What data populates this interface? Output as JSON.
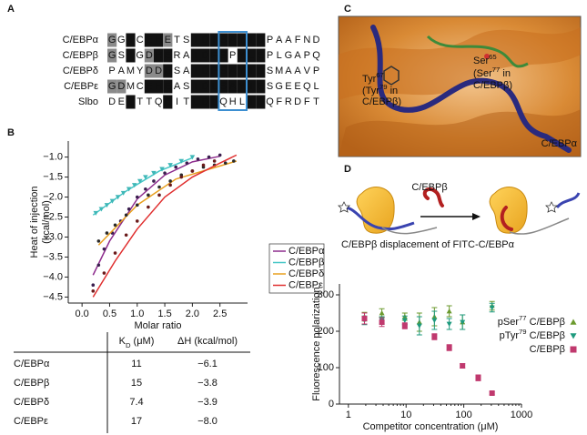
{
  "panel_labels": [
    "A",
    "B",
    "C",
    "D"
  ],
  "alignment": {
    "box_color": "#3d8fd1",
    "rows": [
      {
        "name": "C/EBPα",
        "residues": [
          "G",
          "G",
          "I",
          "C",
          "E",
          "H",
          "E",
          "T",
          "S",
          "I",
          "D",
          "I",
          "S",
          "A",
          "Y",
          "I",
          "D",
          "P",
          "A",
          "A",
          "F",
          "N",
          "D"
        ]
      },
      {
        "name": "C/EBPβ",
        "residues": [
          "G",
          "S",
          "I",
          "G",
          "D",
          "H",
          "E",
          "R",
          "A",
          "I",
          "D",
          "F",
          "S",
          "P",
          "Y",
          "L",
          "E",
          "P",
          "L",
          "G",
          "A",
          "P",
          "Q"
        ]
      },
      {
        "name": "C/EBPδ",
        "residues": [
          "P",
          "A",
          "M",
          "Y",
          "D",
          "D",
          "E",
          "S",
          "A",
          "I",
          "D",
          "F",
          "S",
          "A",
          "Y",
          "I",
          "D",
          "S",
          "M",
          "A",
          "A",
          "V",
          "P"
        ]
      },
      {
        "name": "C/EBPε",
        "residues": [
          "G",
          "D",
          "M",
          "C",
          "E",
          "H",
          "E",
          "A",
          "S",
          "I",
          "D",
          "L",
          "S",
          "A",
          "Y",
          "I",
          "E",
          "S",
          "G",
          "E",
          "E",
          "Q",
          "L"
        ]
      },
      {
        "name": "Slbo",
        "residues": [
          "D",
          "E",
          "L",
          "T",
          "T",
          "Q",
          "E",
          "I",
          "T",
          "L",
          "D",
          "L",
          "Q",
          "H",
          "L",
          "I",
          "D",
          "Q",
          "F",
          "R",
          "D",
          "F",
          "T"
        ]
      }
    ]
  },
  "chart_data": [
    {
      "type": "scatter",
      "xlabel": "Molar ratio",
      "ylabel": [
        "Heat of injection",
        "(kcal/mol)"
      ],
      "xlim": [
        -0.25,
        3.0
      ],
      "ylim": [
        -4.65,
        -0.6
      ],
      "xticks": [
        {
          "value": 0,
          "label": "0.0"
        },
        0.5,
        {
          "value": 1,
          "label": "1.0"
        },
        1.5,
        {
          "value": 2,
          "label": "2.0"
        },
        2.5
      ],
      "yticks": [
        {
          "value": -4.5,
          "label": "−4.5"
        },
        {
          "value": -4,
          "label": "−4.0"
        },
        {
          "value": -3.5,
          "label": "−3.5"
        },
        {
          "value": -3,
          "label": "−3.0"
        },
        {
          "value": -2.5,
          "label": "−2.5"
        },
        {
          "value": -2,
          "label": "−2.0"
        },
        {
          "value": -1.5,
          "label": "−1.5"
        },
        {
          "value": -1,
          "label": "−1.0"
        }
      ],
      "series": [
        {
          "name": "C/EBPα",
          "color": "#8e2d8e",
          "marker": "circle",
          "marker_color": "#3b1f4f",
          "x": [
            0.2,
            0.3,
            0.4,
            0.55,
            0.7,
            0.85,
            1.0,
            1.15,
            1.3,
            1.5,
            1.7,
            1.9,
            2.1,
            2.3,
            2.5
          ],
          "values": [
            -4.2,
            -3.7,
            -3.3,
            -2.9,
            -2.6,
            -2.3,
            -2.0,
            -1.8,
            -1.6,
            -1.4,
            -1.25,
            -1.15,
            -1.05,
            -1.0,
            -0.95
          ],
          "fit_x": [
            0.2,
            0.5,
            1.0,
            1.5,
            2.0,
            2.5
          ],
          "fit_values": [
            -3.95,
            -3.1,
            -2.05,
            -1.45,
            -1.12,
            -0.98
          ]
        },
        {
          "name": "C/EBPβ",
          "color": "#45c6c6",
          "marker": "triangle-down",
          "marker_color": "#3fb7b7",
          "x": [
            0.25,
            0.35,
            0.45,
            0.55,
            0.65,
            0.75,
            0.85,
            0.95,
            1.05,
            1.15,
            1.3,
            1.45,
            1.6,
            1.8,
            2.0
          ],
          "values": [
            -2.4,
            -2.3,
            -2.2,
            -2.1,
            -2.0,
            -1.9,
            -1.8,
            -1.7,
            -1.6,
            -1.5,
            -1.4,
            -1.3,
            -1.2,
            -1.1,
            -1.0
          ],
          "fit_x": [
            0.2,
            0.8,
            1.4,
            2.0
          ],
          "fit_values": [
            -2.45,
            -1.85,
            -1.35,
            -1.02
          ]
        },
        {
          "name": "C/EBPδ",
          "color": "#e8a020",
          "marker": "circle",
          "marker_color": "#2a2a2a",
          "x": [
            0.3,
            0.45,
            0.6,
            0.8,
            1.0,
            1.2,
            1.4,
            1.6,
            1.8,
            2.0,
            2.2,
            2.4,
            2.6,
            2.75
          ],
          "values": [
            -3.1,
            -2.9,
            -2.7,
            -2.45,
            -2.2,
            -1.95,
            -1.75,
            -1.6,
            -1.45,
            -1.35,
            -1.25,
            -1.2,
            -1.15,
            -1.1
          ],
          "fit_x": [
            0.3,
            1.0,
            1.7,
            2.8
          ],
          "fit_values": [
            -3.2,
            -2.2,
            -1.55,
            -1.1
          ]
        },
        {
          "name": "C/EBPε",
          "color": "#e03030",
          "marker": "circle",
          "marker_color": "#6a1a1a",
          "x": [
            0.2,
            0.4,
            0.6,
            0.8,
            1.0,
            1.2,
            1.4,
            1.6,
            1.8,
            2.0,
            2.2,
            2.4
          ],
          "values": [
            -4.35,
            -3.9,
            -3.4,
            -2.95,
            -2.6,
            -2.25,
            -1.95,
            -1.7,
            -1.5,
            -1.35,
            -1.2,
            -1.1
          ],
          "fit_x": [
            0.2,
            0.6,
            1.0,
            1.5,
            2.0,
            2.5,
            2.8
          ],
          "fit_values": [
            -4.5,
            -3.6,
            -2.8,
            -2.0,
            -1.5,
            -1.15,
            -0.95
          ]
        }
      ]
    },
    {
      "type": "scatter",
      "log_x": true,
      "title": "C/EBPβ displacement of FITC-C/EBPα",
      "xlabel": "Competitor concentration (μM)",
      "ylabel": "Fluorescence polarization",
      "xlim": [
        0.7,
        1000
      ],
      "ylim": [
        0,
        330
      ],
      "xticks": [
        1,
        10,
        100,
        1000
      ],
      "yticks": [
        0,
        100,
        200,
        300
      ],
      "x": [
        1.9,
        3.8,
        9.5,
        17,
        31,
        56,
        95,
        178,
        309
      ],
      "series": [
        {
          "name": [
            "pSer",
            "77",
            " C/EBPβ"
          ],
          "color": "#6b9a2e",
          "marker": "triangle-up",
          "values": [
            240,
            250,
            240,
            225,
            240,
            255,
            225,
            null,
            270
          ],
          "errors": [
            12,
            12,
            10,
            25,
            25,
            15,
            20,
            null,
            12
          ]
        },
        {
          "name": [
            "pTyr",
            "79",
            " C/EBPβ"
          ],
          "color": "#1e9a7e",
          "marker": "triangle-down",
          "values": [
            230,
            230,
            230,
            215,
            230,
            220,
            225,
            null,
            265
          ],
          "errors": [
            12,
            10,
            12,
            25,
            25,
            15,
            20,
            null,
            12
          ]
        },
        {
          "name": "C/EBPβ",
          "color": "#c0396e",
          "marker": "square",
          "values": [
            235,
            225,
            215,
            null,
            185,
            155,
            105,
            72,
            30
          ],
          "errors": [
            15,
            12,
            8,
            null,
            8,
            8,
            6,
            8,
            3
          ]
        }
      ]
    }
  ],
  "table": {
    "headers": [
      [
        "K",
        "D",
        " (μM)"
      ],
      "ΔH (kcal/mol)"
    ],
    "rows": [
      [
        "C/EBPα",
        11,
        "−6.1"
      ],
      [
        "C/EBPβ",
        15,
        "−3.8"
      ],
      [
        "C/EBPδ",
        7.4,
        "−3.9"
      ],
      [
        "C/EBPε",
        17,
        "−8.0"
      ]
    ]
  },
  "structure": {
    "tyr_label": [
      "Tyr",
      "67"
    ],
    "tyr_note": [
      [
        "(Tyr",
        "79",
        " in"
      ],
      "C/EBPβ)"
    ],
    "ser_label": [
      "Ser",
      "65"
    ],
    "ser_note": [
      [
        "(Ser",
        "77",
        " in"
      ],
      "C/EBPβ)"
    ],
    "protein_label": "C/EBPα"
  },
  "schematic": {
    "label": "C/EBPβ"
  }
}
